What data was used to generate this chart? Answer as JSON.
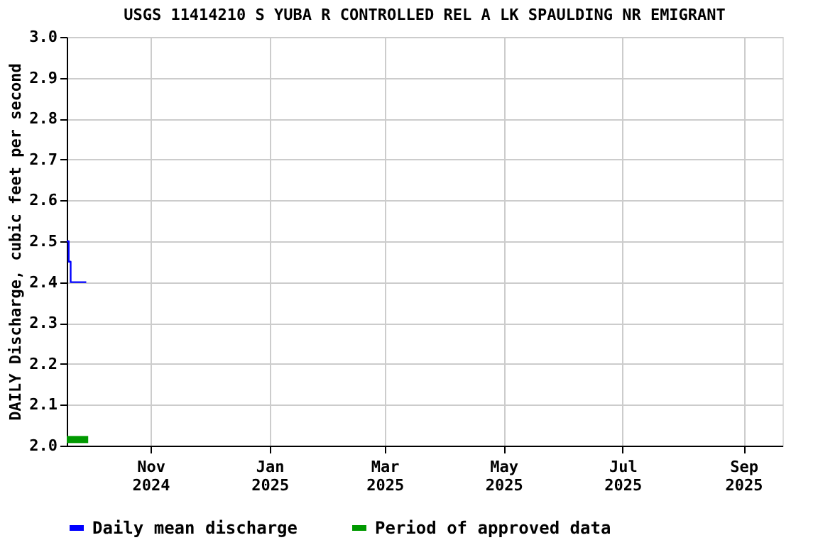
{
  "chart_data": {
    "type": "step",
    "title": "USGS 11414210 S YUBA R CONTROLLED REL A LK SPAULDING NR EMIGRANT",
    "ylabel": "DAILY Discharge, cubic feet per second",
    "x": [
      "2024-09-19",
      "2024-09-20",
      "2024-09-21",
      "2024-09-29"
    ],
    "series": [
      {
        "name": "Daily mean discharge",
        "color": "#0000ff",
        "values": [
          2.5,
          2.45,
          2.4,
          2.4
        ]
      },
      {
        "name": "Period of approved data",
        "color": "#009900",
        "type": "line",
        "x": [
          "2024-09-19",
          "2024-09-30"
        ],
        "values": [
          2.015,
          2.015
        ]
      }
    ],
    "xlim": [
      "2024-09-19",
      "2025-09-21"
    ],
    "xticks": [
      {
        "value": "2024-11-01",
        "label": "Nov\n2024"
      },
      {
        "value": "2025-01-01",
        "label": "Jan\n2025"
      },
      {
        "value": "2025-03-01",
        "label": "Mar\n2025"
      },
      {
        "value": "2025-05-01",
        "label": "May\n2025"
      },
      {
        "value": "2025-07-01",
        "label": "Jul\n2025"
      },
      {
        "value": "2025-09-01",
        "label": "Sep\n2025"
      }
    ],
    "ylim": [
      2,
      3
    ],
    "yticks": [
      {
        "value": 2,
        "label": "2.0"
      },
      2.1,
      2.2,
      2.3,
      2.4,
      2.5,
      2.6,
      2.7,
      2.8,
      2.9,
      {
        "value": 3,
        "label": "3.0"
      }
    ],
    "grid": true,
    "legend": "bottom",
    "line_style": "solid",
    "marker": "none"
  }
}
